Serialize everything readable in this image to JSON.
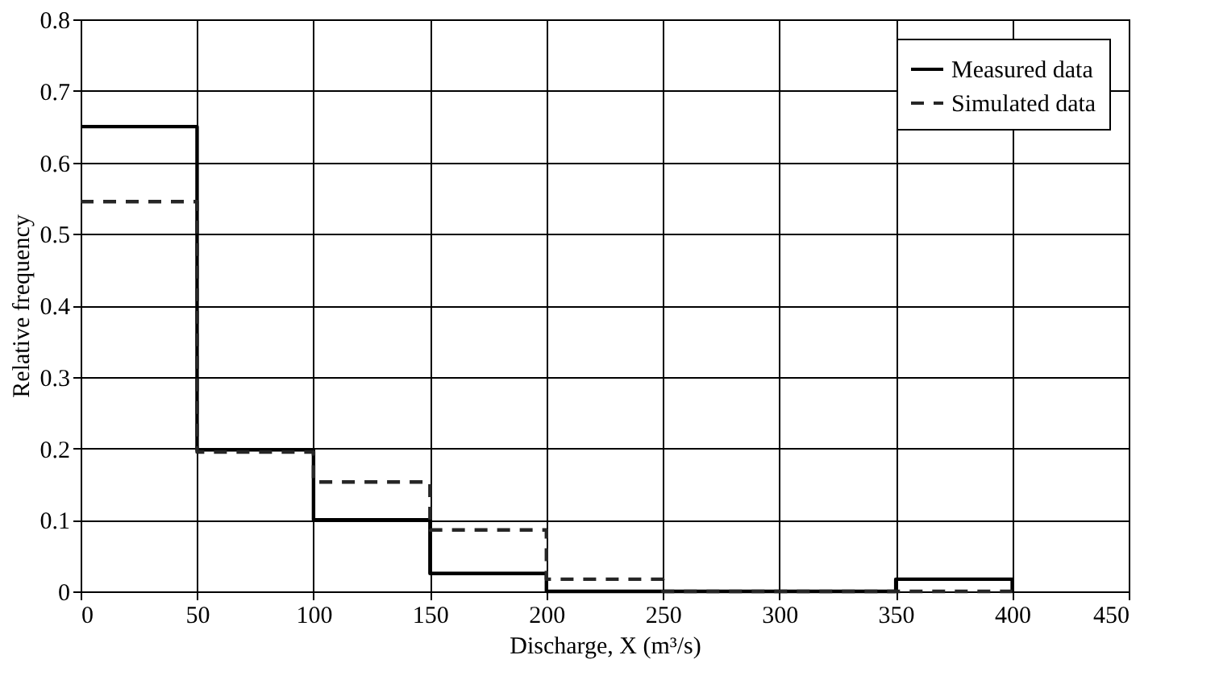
{
  "chart_data": {
    "type": "histogram",
    "xlabel": "Discharge, X (m³/s)",
    "ylabel": "Relative frequency",
    "bins": [
      0,
      50,
      100,
      150,
      200,
      250,
      300,
      350,
      400
    ],
    "series": [
      {
        "name": "Measured data",
        "color": "#000000",
        "line_style": "solid",
        "values": [
          0.65,
          0.198,
          0.1,
          0.025,
          0,
          0,
          0,
          0.017
        ]
      },
      {
        "name": "Simulated data",
        "color": "#262626",
        "line_style": "dashed",
        "values": [
          0.545,
          0.195,
          0.153,
          0.086,
          0.017,
          0,
          0,
          0
        ]
      }
    ],
    "xlim": [
      0,
      450
    ],
    "xticks": [
      0,
      50,
      100,
      150,
      200,
      250,
      300,
      350,
      400,
      450
    ],
    "ylim": [
      0,
      0.8
    ],
    "yticks": [
      0,
      0.1,
      0.2,
      0.3,
      0.4,
      0.5,
      0.6,
      0.7,
      0.8
    ],
    "grid": true,
    "legend": "top right"
  }
}
